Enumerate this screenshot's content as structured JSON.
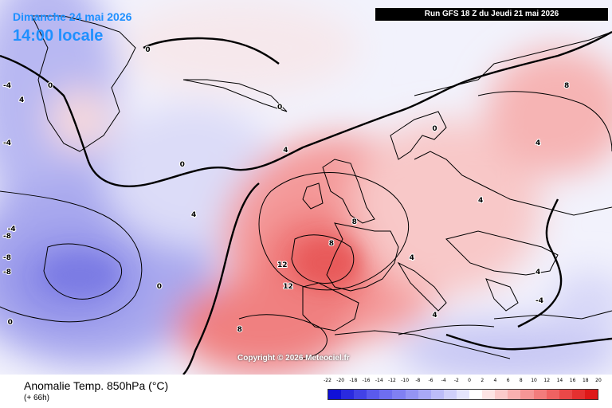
{
  "header": {
    "date": "Dimanche 24 mai 2026",
    "time": "14:00 locale",
    "run": "Run GFS 18 Z du Jeudi 21 mai 2026"
  },
  "copyright": "Copyright © 2026 Meteociel.fr",
  "footer": {
    "title": "Anomalie Temp. 850hPa (°C)",
    "subtitle": "(+ 66h)"
  },
  "legend": {
    "labels": [
      "-22",
      "-20",
      "-18",
      "-16",
      "-14",
      "-12",
      "-10",
      "-8",
      "-6",
      "-4",
      "-2",
      "0",
      "2",
      "4",
      "6",
      "8",
      "10",
      "12",
      "14",
      "16",
      "18",
      "20"
    ],
    "colors": [
      "#1010d8",
      "#2a2ae0",
      "#4242e6",
      "#5a5aec",
      "#6e6ef0",
      "#8080f2",
      "#9494f4",
      "#a8a8f6",
      "#bcbcf8",
      "#d0d0fa",
      "#e4e4fc",
      "#ffffff",
      "#fde4e4",
      "#fbcaca",
      "#f8b0b0",
      "#f59696",
      "#f27c7c",
      "#ef6262",
      "#ea4848",
      "#e43030",
      "#de1818"
    ]
  },
  "contour_labels": [
    {
      "text": "0",
      "lon": -28,
      "lat": 75
    },
    {
      "text": "0",
      "lon": -45,
      "lat": 70
    },
    {
      "text": "0",
      "lon": -22,
      "lat": 59
    },
    {
      "text": "0",
      "lon": -5,
      "lat": 67
    },
    {
      "text": "0",
      "lon": -26,
      "lat": 42
    },
    {
      "text": "0",
      "lon": -52,
      "lat": 37
    },
    {
      "text": "0",
      "lon": 22,
      "lat": 64
    },
    {
      "text": "-4",
      "lon": -66,
      "lat": 62
    },
    {
      "text": "-4",
      "lon": -52,
      "lat": 50
    },
    {
      "text": "-4",
      "lon": -70,
      "lat": 70
    },
    {
      "text": "-8",
      "lon": -60,
      "lat": 49
    },
    {
      "text": "-8",
      "lon": -55,
      "lat": 44
    },
    {
      "text": "-8",
      "lon": -62,
      "lat": 46
    },
    {
      "text": "4",
      "lon": -4,
      "lat": 61
    },
    {
      "text": "4",
      "lon": -20,
      "lat": 52
    },
    {
      "text": "4",
      "lon": -50,
      "lat": 68
    },
    {
      "text": "4",
      "lon": 30,
      "lat": 54
    },
    {
      "text": "4",
      "lon": 40,
      "lat": 62
    },
    {
      "text": "4",
      "lon": 22,
      "lat": 38
    },
    {
      "text": "4",
      "lon": 40,
      "lat": 44
    },
    {
      "text": "8",
      "lon": 8,
      "lat": 51
    },
    {
      "text": "8",
      "lon": 4,
      "lat": 48
    },
    {
      "text": "8",
      "lon": -12,
      "lat": 36
    },
    {
      "text": "8",
      "lon": 45,
      "lat": 70
    },
    {
      "text": "12",
      "lon": -5,
      "lat": 45
    },
    {
      "text": "12",
      "lon": -4,
      "lat": 42
    },
    {
      "text": "4",
      "lon": 18,
      "lat": 46
    },
    {
      "text": "-4",
      "lon": 40,
      "lat": 40
    }
  ]
}
